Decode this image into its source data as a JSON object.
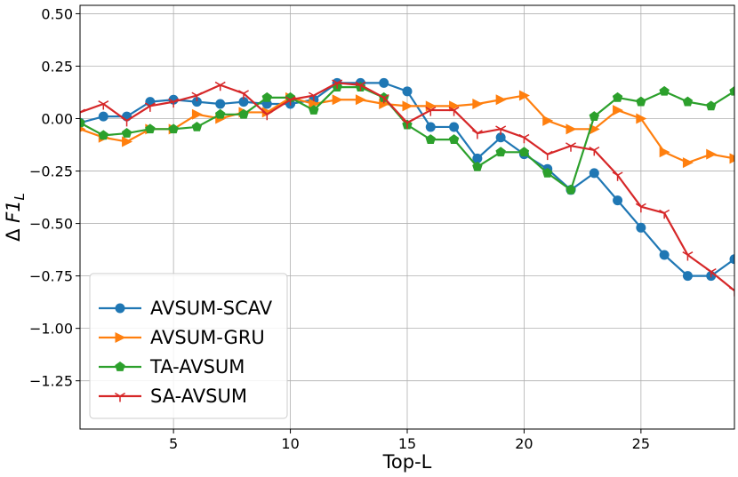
{
  "chart_data": {
    "type": "line",
    "xlabel": "Top-L",
    "ylabel": "Δ F1_L",
    "xlim": [
      1,
      29
    ],
    "ylim": [
      -1.48,
      0.54
    ],
    "xticks": [
      5,
      10,
      15,
      20,
      25
    ],
    "yticks": [
      0.5,
      0.25,
      0.0,
      -0.25,
      -0.5,
      -0.75,
      -1.0,
      -1.25
    ],
    "ytick_labels": [
      "0.50",
      "0.25",
      "0.00",
      "−0.25",
      "−0.50",
      "−0.75",
      "−1.00",
      "−1.25"
    ],
    "grid": true,
    "legend_position": "lower-left",
    "x": [
      1,
      2,
      3,
      4,
      5,
      6,
      7,
      8,
      9,
      10,
      11,
      12,
      13,
      14,
      15,
      16,
      17,
      18,
      19,
      20,
      21,
      22,
      23,
      24,
      25,
      26,
      27,
      28,
      29
    ],
    "series": [
      {
        "name": "AVSUM-SCAV",
        "color": "#1f77b4",
        "marker": "circle",
        "values": [
          -0.02,
          0.01,
          0.01,
          0.08,
          0.09,
          0.08,
          0.07,
          0.08,
          0.07,
          0.07,
          0.09,
          0.17,
          0.17,
          0.17,
          0.13,
          -0.04,
          -0.04,
          -0.19,
          -0.09,
          -0.17,
          -0.24,
          -0.34,
          -0.26,
          -0.39,
          -0.52,
          -0.65,
          -0.75,
          -0.75,
          -0.67
        ]
      },
      {
        "name": "AVSUM-GRU",
        "color": "#ff7f0e",
        "marker": "triangle-right",
        "values": [
          -0.05,
          -0.09,
          -0.11,
          -0.05,
          -0.05,
          0.02,
          0.0,
          0.03,
          0.03,
          0.1,
          0.07,
          0.09,
          0.09,
          0.07,
          0.06,
          0.06,
          0.06,
          0.07,
          0.09,
          0.11,
          -0.01,
          -0.05,
          -0.05,
          0.04,
          0.0,
          -0.16,
          -0.21,
          -0.17,
          -0.19
        ]
      },
      {
        "name": "TA-AVSUM",
        "color": "#2ca02c",
        "marker": "pentagon",
        "values": [
          -0.02,
          -0.08,
          -0.07,
          -0.05,
          -0.05,
          -0.04,
          0.02,
          0.02,
          0.1,
          0.1,
          0.04,
          0.15,
          0.15,
          0.1,
          -0.03,
          -0.1,
          -0.1,
          -0.23,
          -0.16,
          -0.16,
          -0.26,
          -0.34,
          0.01,
          0.1,
          0.08,
          0.13,
          0.08,
          0.06,
          0.13
        ]
      },
      {
        "name": "SA-AVSUM",
        "color": "#d62728",
        "marker": "tri-down",
        "values": [
          0.03,
          0.07,
          -0.01,
          0.06,
          0.08,
          0.11,
          0.16,
          0.12,
          0.02,
          0.09,
          0.11,
          0.17,
          0.16,
          0.1,
          -0.02,
          0.04,
          0.04,
          -0.07,
          -0.05,
          -0.09,
          -0.17,
          -0.13,
          -0.15,
          -0.27,
          -0.42,
          -0.45,
          -0.65,
          -0.73,
          -0.82
        ]
      }
    ]
  }
}
